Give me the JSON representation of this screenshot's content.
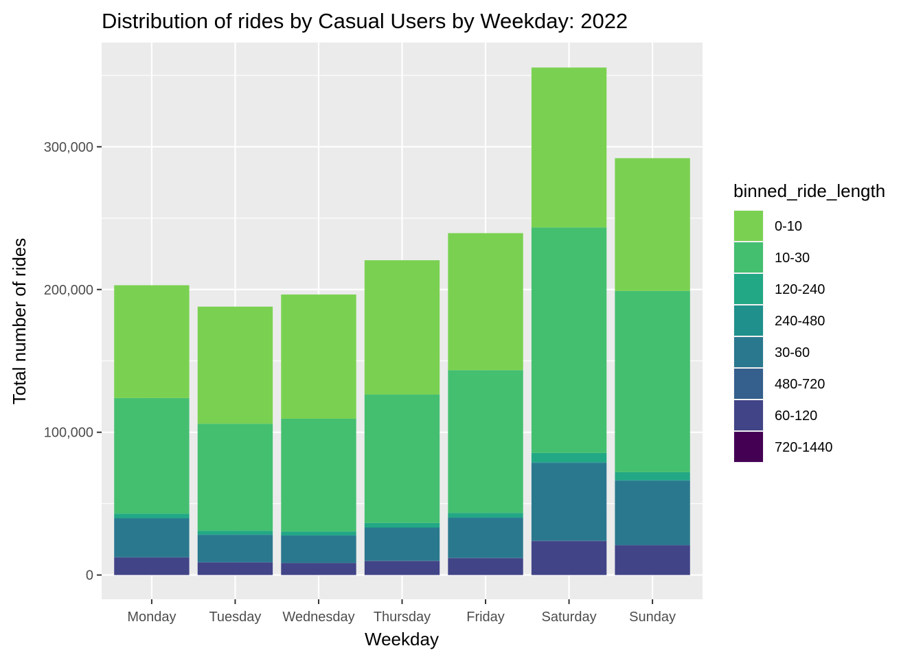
{
  "chart_data": {
    "type": "bar",
    "stacked": true,
    "title": "Distribution of rides by Casual Users by Weekday: 2022",
    "xlabel": "Weekday",
    "ylabel": "Total number of rides",
    "ylim": [
      -17000,
      373000
    ],
    "yticks": [
      0,
      100000,
      200000,
      300000
    ],
    "ytick_labels": [
      "0",
      "100,000",
      "200,000",
      "300,000"
    ],
    "minor_gridlines": true,
    "categories": [
      "Monday",
      "Tuesday",
      "Wednesday",
      "Thursday",
      "Friday",
      "Saturday",
      "Sunday"
    ],
    "legend_title": "binned_ride_length",
    "legend_position": "right",
    "series": [
      {
        "name": "0-10",
        "color": "#7AD151",
        "values": [
          79000,
          82000,
          87000,
          94000,
          96000,
          112000,
          93000
        ]
      },
      {
        "name": "10-30",
        "color": "#44BF70",
        "values": [
          81000,
          75000,
          79000,
          90000,
          100000,
          158000,
          127000
        ]
      },
      {
        "name": "120-240",
        "color": "#22A884",
        "values": [
          3000,
          2500,
          2500,
          3000,
          3000,
          6500,
          5500
        ]
      },
      {
        "name": "240-480",
        "color": "#1F908C",
        "values": [
          500,
          500,
          500,
          500,
          500,
          500,
          500
        ]
      },
      {
        "name": "30-60",
        "color": "#2A788E",
        "values": [
          27000,
          19000,
          19000,
          23000,
          28000,
          54500,
          45000
        ]
      },
      {
        "name": "480-720",
        "color": "#355F8D",
        "values": [
          200,
          200,
          200,
          200,
          200,
          200,
          200
        ]
      },
      {
        "name": "60-120",
        "color": "#414487",
        "values": [
          12300,
          8800,
          8300,
          9800,
          11800,
          23800,
          20800
        ]
      },
      {
        "name": "720-1440",
        "color": "#440154",
        "values": [
          0,
          0,
          0,
          0,
          0,
          0,
          0
        ]
      }
    ]
  }
}
